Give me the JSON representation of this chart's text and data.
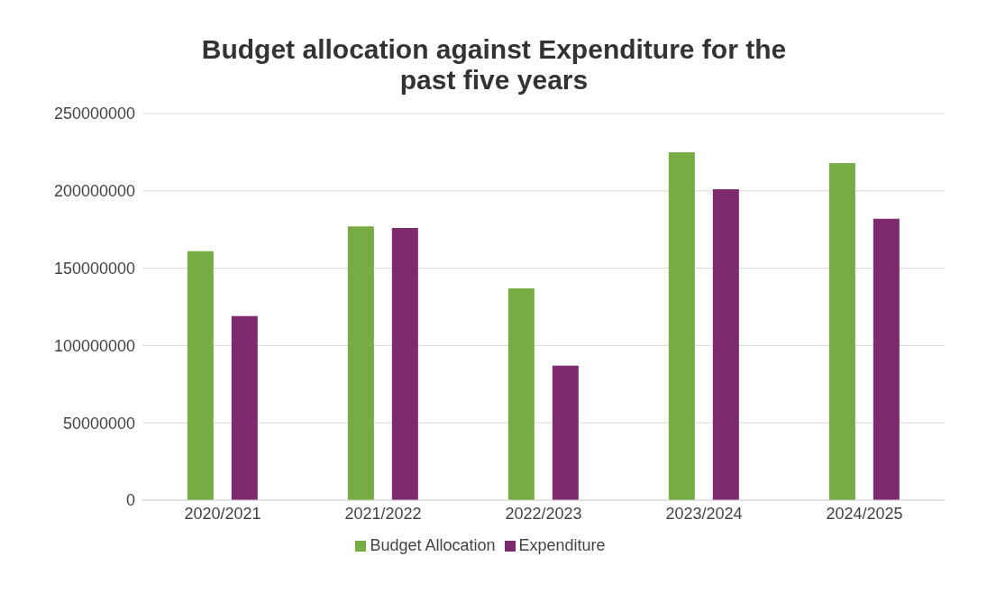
{
  "chart_data": {
    "type": "bar",
    "title": "Budget allocation against Expenditure for the past five years",
    "categories": [
      "2020/2021",
      "2021/2022",
      "2022/2023",
      "2023/2024",
      "2024/2025"
    ],
    "series": [
      {
        "name": "Budget Allocation",
        "color": "#77ab43",
        "values": [
          161000000,
          177000000,
          137000000,
          225000000,
          218000000
        ]
      },
      {
        "name": "Expenditure",
        "color": "#7e2a6e",
        "values": [
          119000000,
          176000000,
          87000000,
          201000000,
          182000000
        ]
      }
    ],
    "ylim": [
      0,
      250000000
    ],
    "yticks": [
      0,
      50000000,
      100000000,
      150000000,
      200000000,
      250000000
    ],
    "grid": "y",
    "legend": "bottom"
  }
}
